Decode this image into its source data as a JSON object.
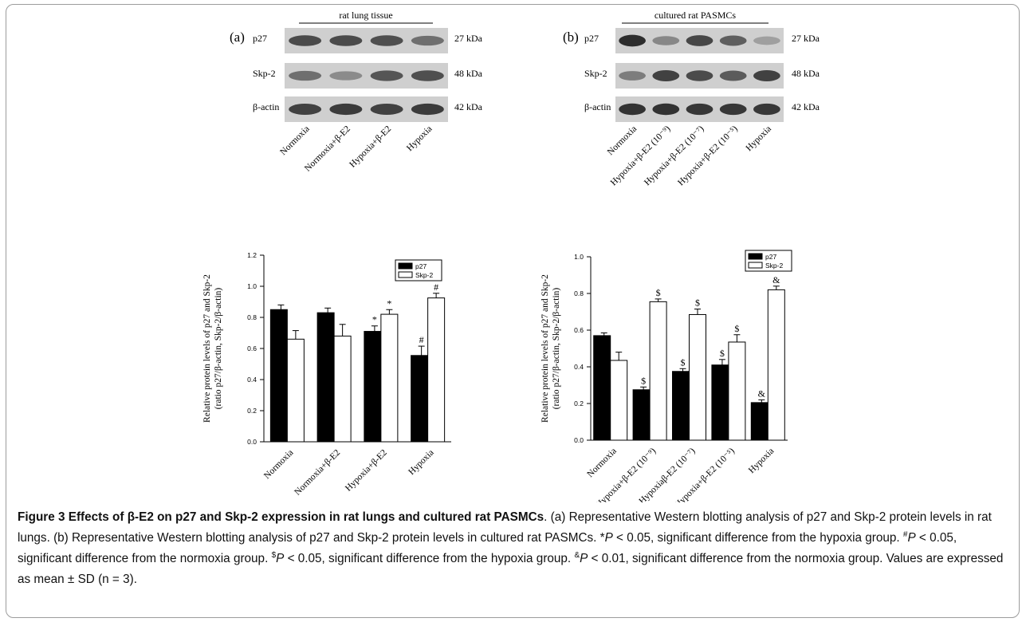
{
  "blots": [
    {
      "panel": "(a)",
      "header": "rat lung tissue",
      "rows": [
        {
          "label": "p27",
          "kda": "27 kDa",
          "intensity": [
            0.8,
            0.8,
            0.78,
            0.62
          ]
        },
        {
          "label": "Skp-2",
          "kda": "48 kDa",
          "intensity": [
            0.62,
            0.48,
            0.75,
            0.78
          ]
        },
        {
          "label": "β-actin",
          "kda": "42 kDa",
          "intensity": [
            0.85,
            0.88,
            0.85,
            0.88
          ]
        }
      ],
      "lanes": [
        "Normoxia",
        "Normoxia+β-E2",
        "Hypoxia+β-E2",
        "Hypoxia"
      ]
    },
    {
      "panel": "(b)",
      "header": "cultured rat PASMCs",
      "rows": [
        {
          "label": "p27",
          "kda": "27 kDa",
          "intensity": [
            0.95,
            0.5,
            0.82,
            0.7,
            0.38
          ]
        },
        {
          "label": "Skp-2",
          "kda": "48 kDa",
          "intensity": [
            0.55,
            0.85,
            0.8,
            0.72,
            0.85
          ]
        },
        {
          "label": "β-actin",
          "kda": "42 kDa",
          "intensity": [
            0.92,
            0.92,
            0.9,
            0.9,
            0.9
          ]
        }
      ],
      "lanes": [
        "Normoxia",
        "Hypoxia+β-E2 (10⁻⁹)",
        "Hypoxia+β-E2 (10⁻⁷)",
        "Hypoxia+β-E2 (10⁻⁵)",
        "Hypoxia"
      ]
    }
  ],
  "chart_data": [
    {
      "type": "bar",
      "ylabel": "Relative protein levels of p27 and Skp-2",
      "ylabel2": "(ratio p27/β-actin, Skp-2/β-actin)",
      "ylim": [
        0,
        1.2
      ],
      "yticks": [
        "0.0",
        "0.2",
        "0.4",
        "0.6",
        "0.8",
        "1.0",
        "1.2"
      ],
      "categories": [
        "Normoxia",
        "Normoxia+β-E2",
        "Hypoxia+β-E2",
        "Hypoxia"
      ],
      "legend_position": "top-right",
      "series": [
        {
          "name": "p27",
          "color": "#000000",
          "values": [
            0.85,
            0.83,
            0.71,
            0.555
          ],
          "errors": [
            0.03,
            0.03,
            0.035,
            0.06
          ],
          "marks": [
            "",
            "",
            "*",
            "#"
          ]
        },
        {
          "name": "Skp-2",
          "color": "#ffffff",
          "values": [
            0.66,
            0.68,
            0.82,
            0.925
          ],
          "errors": [
            0.055,
            0.075,
            0.03,
            0.03
          ],
          "marks": [
            "",
            "",
            "*",
            "#"
          ]
        }
      ]
    },
    {
      "type": "bar",
      "ylabel": "Relative protein levels of p27 and Skp-2",
      "ylabel2": "(ratio p27/β-actin, Skp-2/β-actin)",
      "ylim": [
        0,
        1.0
      ],
      "yticks": [
        "0.0",
        "0.2",
        "0.4",
        "0.6",
        "0.8",
        "1.0"
      ],
      "categories": [
        "Normoxia",
        "Hypoxia+β-E2 (10⁻⁹)",
        "Hypoxiaβ-E2 (10⁻⁷)",
        "Hypoxia+β-E2 (10⁻⁵)",
        "Hypoxia"
      ],
      "legend_position": "top-right",
      "series": [
        {
          "name": "p27",
          "color": "#000000",
          "values": [
            0.57,
            0.275,
            0.375,
            0.41,
            0.205
          ],
          "errors": [
            0.015,
            0.015,
            0.015,
            0.03,
            0.015
          ],
          "marks": [
            "",
            "$",
            "$",
            "$",
            "&"
          ]
        },
        {
          "name": "Skp-2",
          "color": "#ffffff",
          "values": [
            0.435,
            0.755,
            0.685,
            0.535,
            0.82
          ],
          "errors": [
            0.045,
            0.015,
            0.03,
            0.04,
            0.02
          ],
          "marks": [
            "",
            "$",
            "$",
            "$",
            "&"
          ]
        }
      ]
    }
  ],
  "caption": {
    "title": "Figure 3 Effects of β-E2 on p27 and Skp-2 expression in rat lungs and cultured rat PASMCs",
    "s1": ". (a) Representative Western blotting analysis of p27 and Skp-2 protein levels in rat lungs. (b) Representative Western blotting analysis of p27 and Skp-2 protein levels in cultured rat PASMCs. ",
    "m1": "*",
    "s2": " < 0.05, significant difference from the hypoxia group. ",
    "m2": "#",
    "s3": " < 0.05, significant difference from the normoxia group. ",
    "m3": "$",
    "s4": " < 0.05, significant difference from the hypoxia group. ",
    "m4": "&",
    "s5": " < 0.01, significant difference from the normoxia group. Values are expressed as mean ± SD (n = 3).",
    "p": "P"
  }
}
